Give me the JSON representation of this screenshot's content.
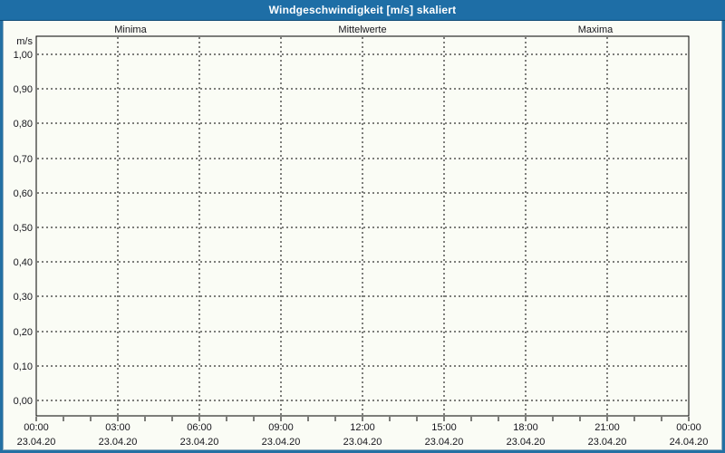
{
  "window": {
    "title": "Windgeschwindigkeit [m/s] skaliert"
  },
  "colors": {
    "titlebar": "#1e6ea6",
    "window_border": "#2470a3",
    "background": "#fafcf5",
    "grid": "#000000",
    "axis_text": "#16161c",
    "minima": "#00cc22",
    "mittelwerte": "#2a2ad0",
    "maxima": "#d01236"
  },
  "chart_data": {
    "type": "line",
    "title": "Windgeschwindigkeit [m/s] skaliert",
    "unit_label": "m/s",
    "ylim": [
      0.0,
      1.0
    ],
    "y_tick_step": 0.1,
    "y_tick_labels": [
      "1,00",
      "0,90",
      "0,80",
      "0,70",
      "0,60",
      "0,50",
      "0,40",
      "0,30",
      "0,20",
      "0,10",
      "0,00"
    ],
    "x_hours_range": [
      0,
      24
    ],
    "x_major_step_hours": 3,
    "x_minor_step_hours": 1,
    "x_ticks": [
      {
        "time": "00:00",
        "date": "23.04.20"
      },
      {
        "time": "03:00",
        "date": "23.04.20"
      },
      {
        "time": "06:00",
        "date": "23.04.20"
      },
      {
        "time": "09:00",
        "date": "23.04.20"
      },
      {
        "time": "12:00",
        "date": "23.04.20"
      },
      {
        "time": "15:00",
        "date": "23.04.20"
      },
      {
        "time": "18:00",
        "date": "23.04.20"
      },
      {
        "time": "21:00",
        "date": "23.04.20"
      },
      {
        "time": "00:00",
        "date": "24.04.20"
      }
    ],
    "grid_style": "dashed",
    "legend_position": "top",
    "series": [
      {
        "name": "Minima",
        "color": "#00cc22",
        "values": []
      },
      {
        "name": "Mittelwerte",
        "color": "#2a2ad0",
        "values": []
      },
      {
        "name": "Maxima",
        "color": "#d01236",
        "values": []
      }
    ]
  }
}
